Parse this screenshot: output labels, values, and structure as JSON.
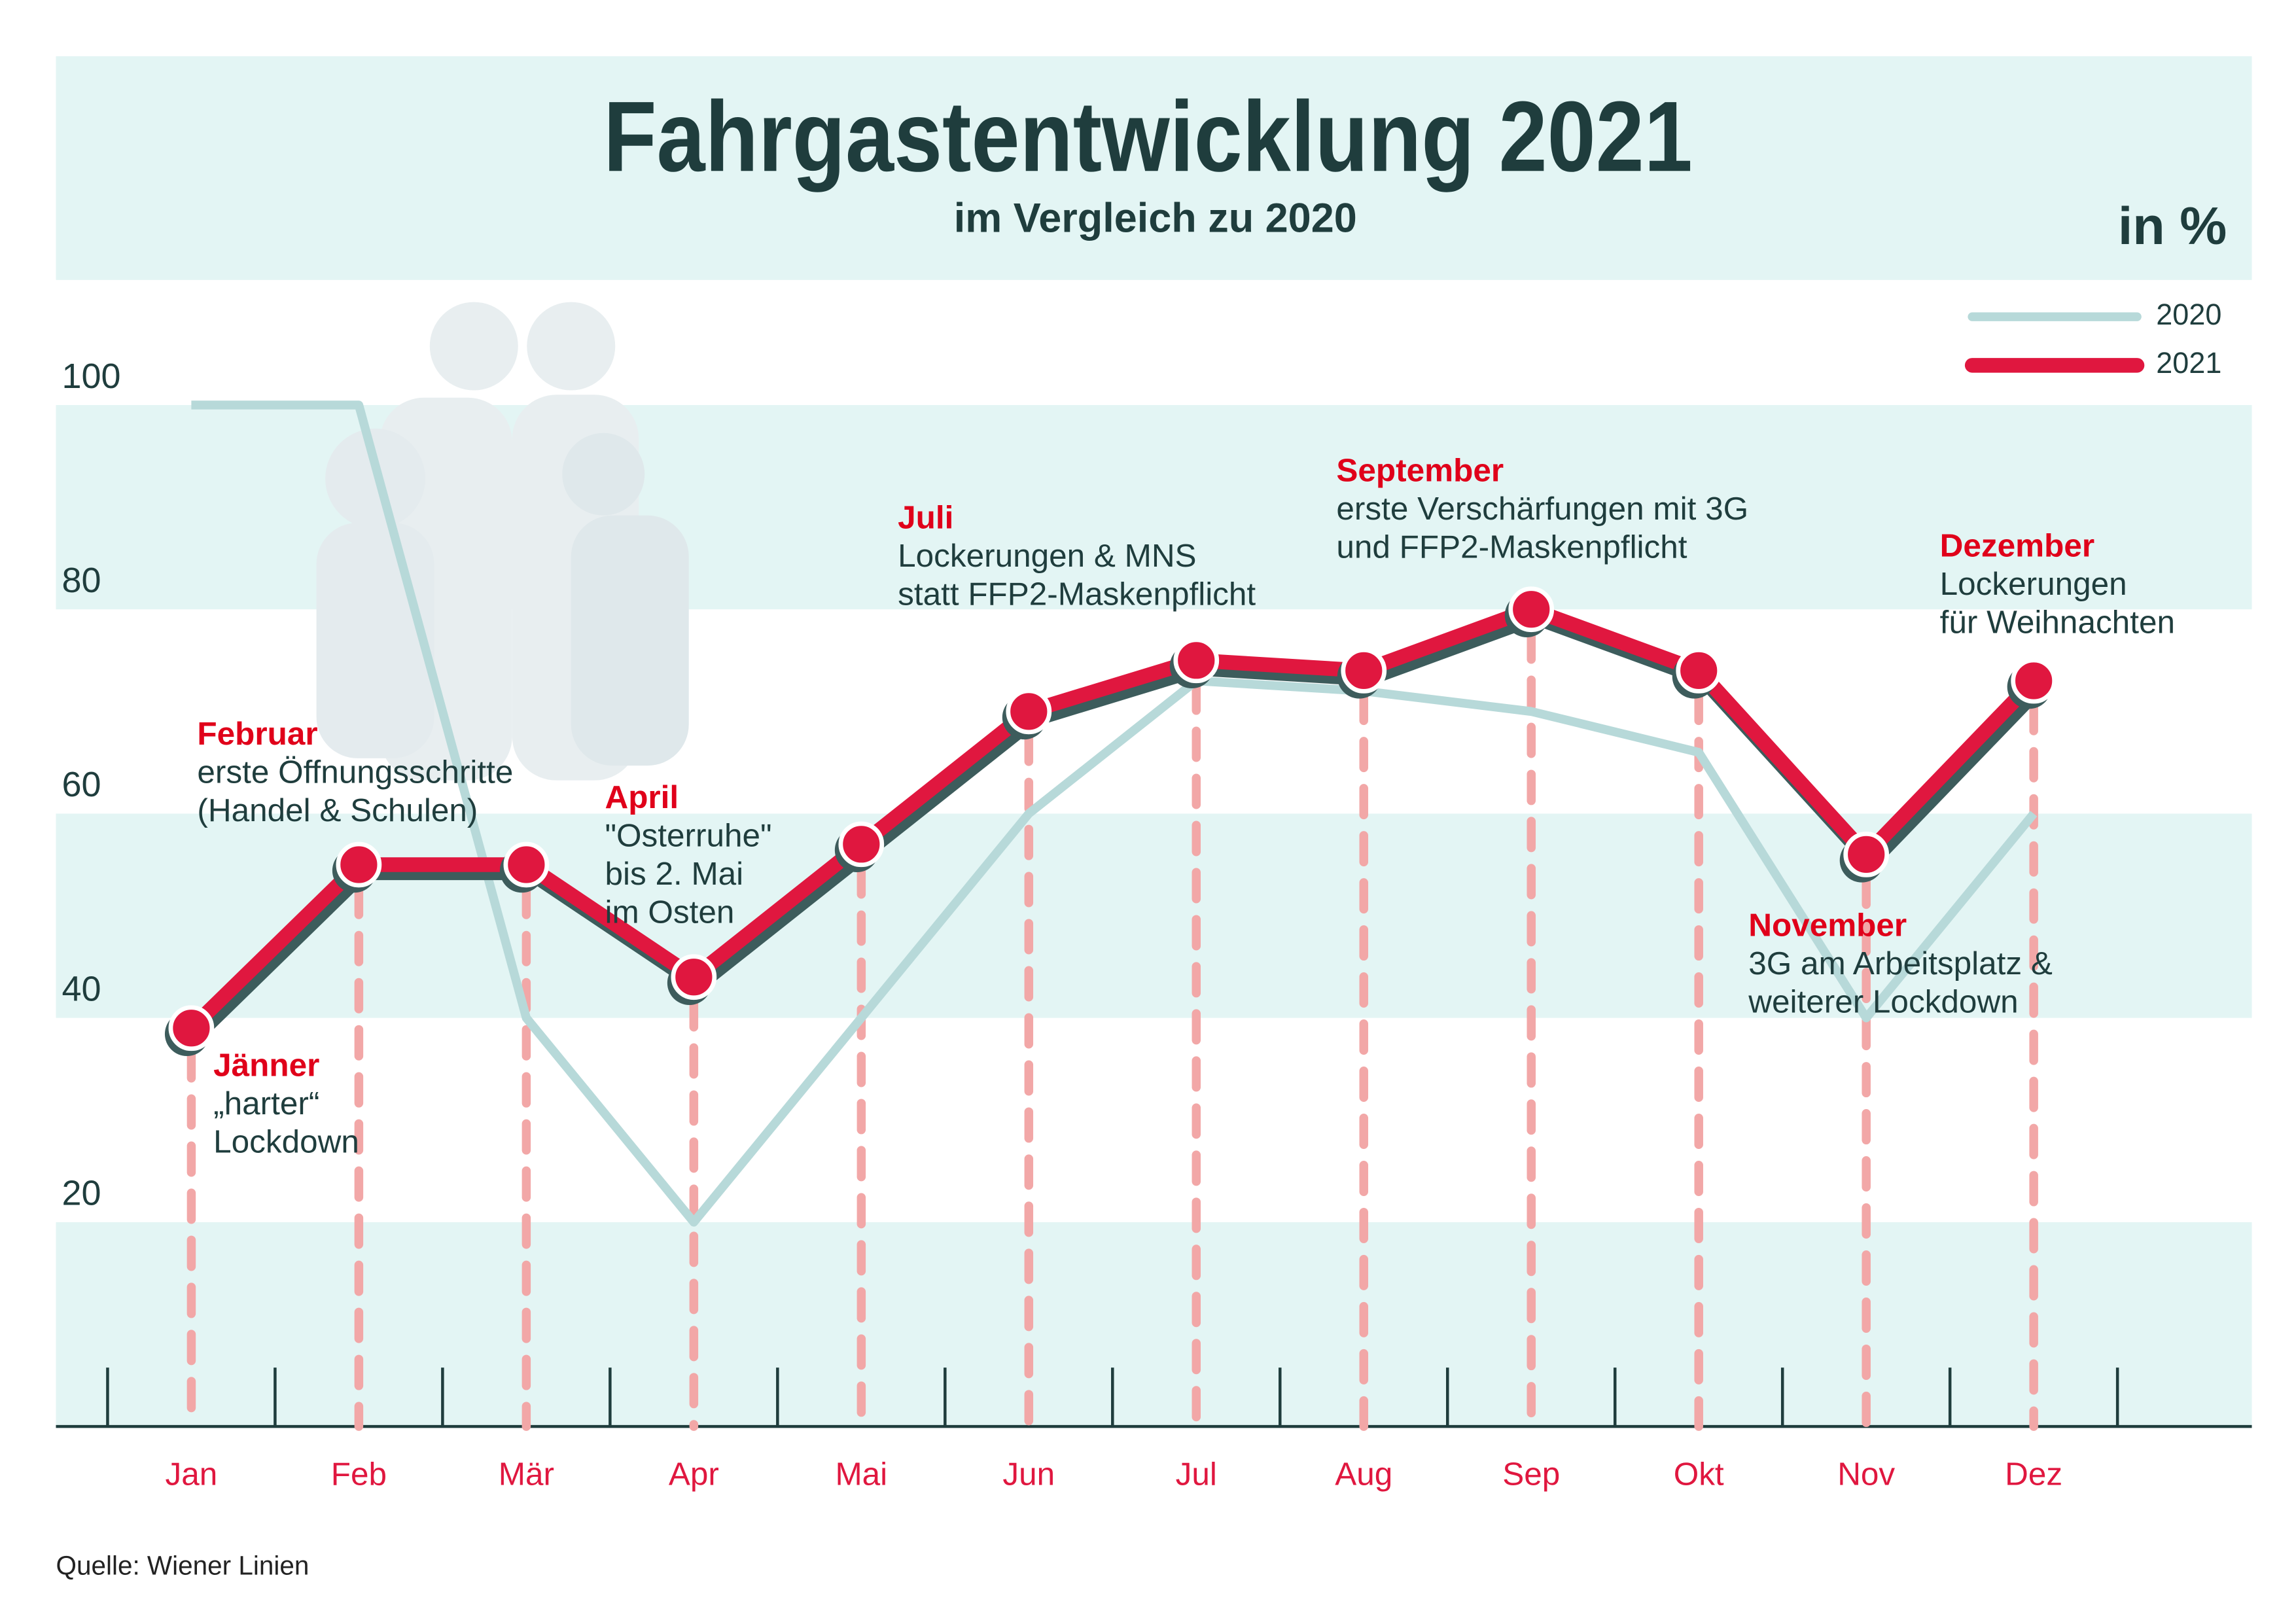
{
  "chart_data": {
    "type": "line",
    "title": "Fahrgastentwicklung 2021",
    "subtitle": "im Vergleich zu 2020",
    "unit_label": "in %",
    "source": "Quelle: Wiener Linien",
    "categories": [
      "Jan",
      "Feb",
      "Mär",
      "Apr",
      "Mai",
      "Jun",
      "Jul",
      "Aug",
      "Sep",
      "Okt",
      "Nov",
      "Dez"
    ],
    "series": [
      {
        "name": "2020",
        "color": "#b7d9d9",
        "values": [
          100,
          100,
          40,
          20,
          40,
          60,
          73,
          72,
          70,
          66,
          40,
          60
        ]
      },
      {
        "name": "2021",
        "color": "#e0173f",
        "values": [
          39,
          55,
          55,
          44,
          57,
          70,
          75,
          74,
          80,
          74,
          56,
          73
        ]
      }
    ],
    "ylim": [
      0,
      100
    ],
    "yticks": [
      20,
      40,
      60,
      80,
      100
    ],
    "annotations": [
      {
        "title": "Jänner",
        "lines": [
          "„harter“",
          "Lockdown"
        ]
      },
      {
        "title": "Februar",
        "lines": [
          "erste Öffnungsschritte",
          "(Handel & Schulen)"
        ]
      },
      {
        "title": "April",
        "lines": [
          "\"Osterruhe\"",
          "bis 2. Mai",
          "im Osten"
        ]
      },
      {
        "title": "Juli",
        "lines": [
          "Lockerungen & MNS",
          "statt FFP2-Maskenpflicht"
        ]
      },
      {
        "title": "September",
        "lines": [
          "erste Verschärfungen mit 3G",
          "und FFP2-Maskenpflicht"
        ]
      },
      {
        "title": "Dezember",
        "lines": [
          "Lockerungen",
          "für Weihnachten"
        ]
      },
      {
        "title": "November",
        "lines": [
          "3G am Arbeitsplatz &",
          "weiterer Lockdown"
        ]
      }
    ]
  }
}
